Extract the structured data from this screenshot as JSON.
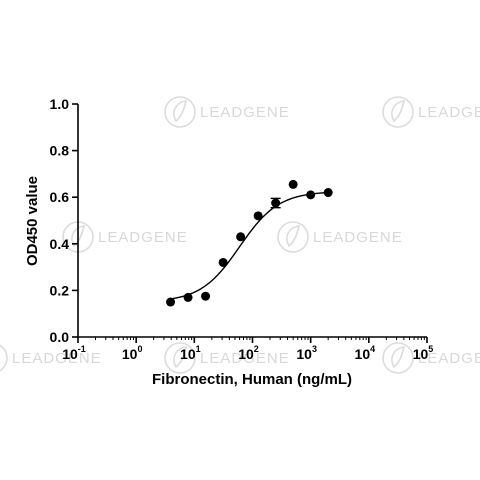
{
  "watermark": {
    "text": "LEADGENE",
    "icon": "leaf-logo-icon"
  },
  "chart_data": {
    "type": "scatter",
    "xscale": "log10",
    "xlabel": "Fibronectin, Human (ng/mL)",
    "ylabel": "OD450 value",
    "xlim": [
      0.1,
      100000
    ],
    "ylim": [
      0,
      1.0
    ],
    "x_ticks": [
      {
        "base": "10",
        "exp": "-1"
      },
      {
        "base": "10",
        "exp": "0"
      },
      {
        "base": "10",
        "exp": "1"
      },
      {
        "base": "10",
        "exp": "2"
      },
      {
        "base": "10",
        "exp": "3"
      },
      {
        "base": "10",
        "exp": "4"
      },
      {
        "base": "10",
        "exp": "5"
      }
    ],
    "y_ticks": [
      "0.0",
      "0.2",
      "0.4",
      "0.6",
      "0.8",
      "1.0"
    ],
    "grid": false,
    "series": [
      {
        "points": [
          {
            "x": 3.9,
            "y": 0.15
          },
          {
            "x": 7.8,
            "y": 0.17
          },
          {
            "x": 15.6,
            "y": 0.175
          },
          {
            "x": 31.25,
            "y": 0.32
          },
          {
            "x": 62.5,
            "y": 0.43
          },
          {
            "x": 125,
            "y": 0.52
          },
          {
            "x": 250,
            "y": 0.575,
            "err": 0.02
          },
          {
            "x": 500,
            "y": 0.655
          },
          {
            "x": 1000,
            "y": 0.61
          },
          {
            "x": 2000,
            "y": 0.62
          }
        ],
        "fit": {
          "model": "4PL",
          "bottom": 0.15,
          "top": 0.625,
          "ec50": 60,
          "hill": 1.3
        }
      }
    ]
  }
}
